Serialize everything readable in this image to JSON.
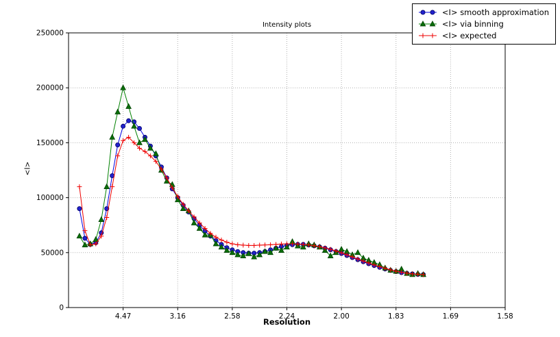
{
  "chart_data": {
    "type": "line",
    "title": "Intensity plots",
    "xlabel": "Resolution",
    "ylabel": "<I>",
    "xlim": [
      0,
      0.4
    ],
    "ylim": [
      0,
      250000
    ],
    "grid": true,
    "grid_style": "dotted",
    "legend_position": "top-right",
    "x_scale": "inverse_d_squared",
    "x_ticks": [
      {
        "pos": 0.05,
        "label": "4.47"
      },
      {
        "pos": 0.1,
        "label": "3.16"
      },
      {
        "pos": 0.15,
        "label": "2.58"
      },
      {
        "pos": 0.2,
        "label": "2.24"
      },
      {
        "pos": 0.25,
        "label": "2.00"
      },
      {
        "pos": 0.3,
        "label": "1.83"
      },
      {
        "pos": 0.35,
        "label": "1.69"
      },
      {
        "pos": 0.4,
        "label": "1.58"
      }
    ],
    "y_ticks": [
      {
        "pos": 0,
        "label": "0"
      },
      {
        "pos": 50000,
        "label": "50000"
      },
      {
        "pos": 100000,
        "label": "100000"
      },
      {
        "pos": 150000,
        "label": "150000"
      },
      {
        "pos": 200000,
        "label": "200000"
      },
      {
        "pos": 250000,
        "label": "250000"
      }
    ],
    "x": [
      0.01,
      0.015,
      0.02,
      0.025,
      0.03,
      0.035,
      0.04,
      0.045,
      0.05,
      0.055,
      0.06,
      0.065,
      0.07,
      0.075,
      0.08,
      0.085,
      0.09,
      0.095,
      0.1,
      0.105,
      0.11,
      0.115,
      0.12,
      0.125,
      0.13,
      0.135,
      0.14,
      0.145,
      0.15,
      0.155,
      0.16,
      0.165,
      0.17,
      0.175,
      0.18,
      0.185,
      0.19,
      0.195,
      0.2,
      0.205,
      0.21,
      0.215,
      0.22,
      0.225,
      0.23,
      0.235,
      0.24,
      0.245,
      0.25,
      0.255,
      0.26,
      0.265,
      0.27,
      0.275,
      0.28,
      0.285,
      0.29,
      0.295,
      0.3,
      0.305,
      0.31,
      0.315,
      0.32,
      0.325
    ],
    "series": [
      {
        "name": "<I> smooth approximation",
        "color": "#0000e0",
        "marker": "circle",
        "marker_fill": "#2222cc",
        "marker_edge": "#000066",
        "values": [
          90000,
          63000,
          57500,
          59000,
          68000,
          90000,
          120000,
          148000,
          165000,
          170000,
          169000,
          163000,
          155000,
          147000,
          138000,
          128000,
          118000,
          108000,
          100000,
          93000,
          87000,
          81000,
          75000,
          69500,
          65000,
          61000,
          57500,
          54500,
          52500,
          51000,
          50000,
          49500,
          49500,
          50000,
          51000,
          52500,
          54000,
          55500,
          56500,
          57200,
          57500,
          57500,
          57000,
          56200,
          55200,
          54000,
          52600,
          51000,
          49200,
          47400,
          45500,
          43600,
          41700,
          39900,
          38200,
          36600,
          35100,
          33800,
          32700,
          31800,
          31100,
          30600,
          30200,
          30000
        ]
      },
      {
        "name": "<I> via binning",
        "color": "#008000",
        "marker": "triangle",
        "marker_fill": "#0a6e0a",
        "marker_edge": "#013d01",
        "values": [
          65000,
          57000,
          58000,
          62000,
          80000,
          110000,
          155000,
          178000,
          200000,
          183000,
          165000,
          150000,
          153000,
          145000,
          140000,
          125000,
          115000,
          112000,
          98000,
          90000,
          88000,
          77000,
          72000,
          66000,
          66000,
          58000,
          55000,
          52000,
          50000,
          48000,
          47000,
          49000,
          46000,
          48000,
          51000,
          50000,
          54000,
          52000,
          55000,
          60000,
          56000,
          55000,
          58000,
          57000,
          55000,
          52000,
          47000,
          50000,
          53000,
          51000,
          48000,
          50000,
          45000,
          43000,
          41000,
          39000,
          36000,
          34000,
          33000,
          35000,
          31000,
          30000,
          31000,
          30000
        ]
      },
      {
        "name": "<I> expected",
        "color": "#ee0000",
        "marker": "plus",
        "marker_fill": "#ee0000",
        "marker_edge": "#ee0000",
        "values": [
          110000,
          70000,
          57000,
          58000,
          65000,
          82000,
          110000,
          138000,
          152000,
          155000,
          150000,
          145000,
          142000,
          138000,
          133000,
          126000,
          118000,
          109000,
          101000,
          94000,
          88000,
          82500,
          77000,
          72000,
          67500,
          64000,
          61500,
          59500,
          58000,
          57200,
          56800,
          56500,
          56500,
          56800,
          57000,
          57200,
          57500,
          57800,
          58000,
          58000,
          57800,
          57500,
          57000,
          56300,
          55400,
          54300,
          53000,
          51500,
          49800,
          48000,
          46100,
          44200,
          42300,
          40500,
          38800,
          37200,
          35700,
          34300,
          33100,
          32100,
          31300,
          30700,
          30300,
          30000
        ]
      }
    ]
  }
}
